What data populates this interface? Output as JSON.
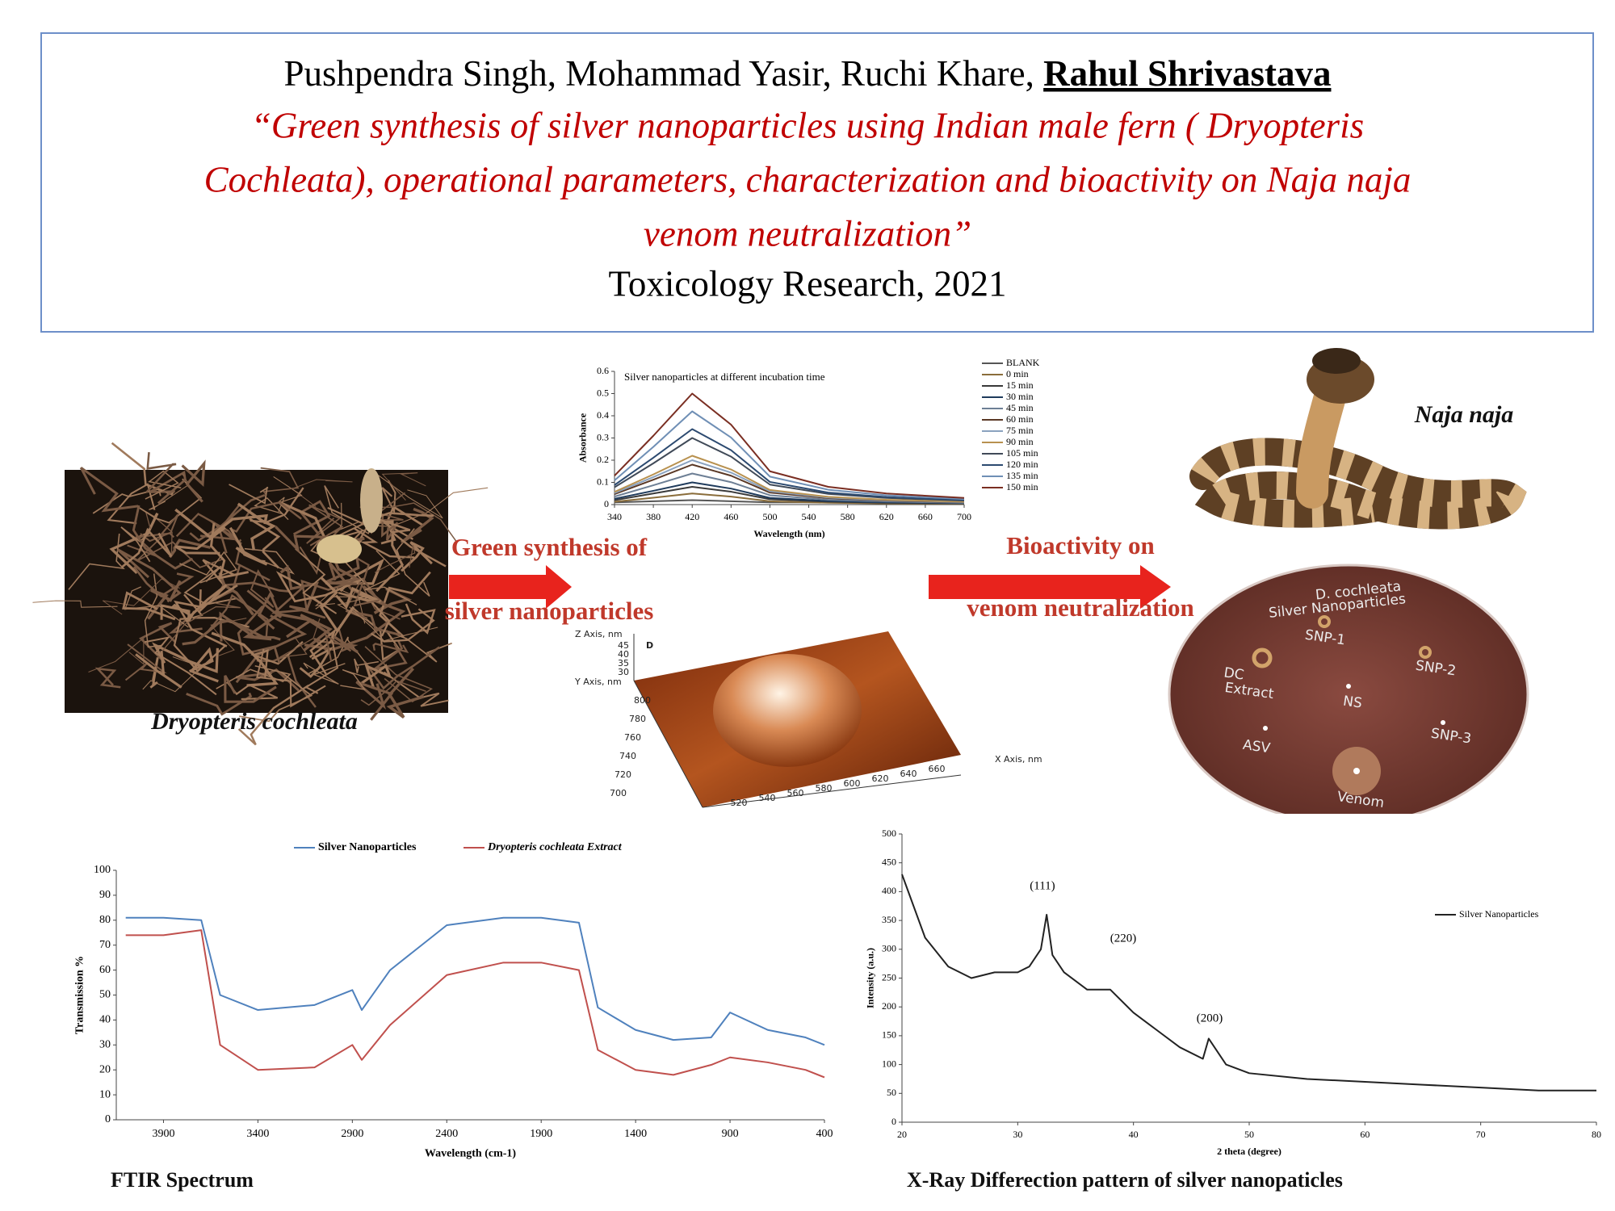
{
  "header": {
    "authors": "Pushpendra Singh, Mohammad Yasir, Ruchi Khare,",
    "presenting_author": "Rahul Shrivastava",
    "title_lines": [
      "“Green synthesis of silver nanoparticles using Indian male fern ( Dryopteris",
      "Cochleata), operational parameters, characterization and bioactivity on Naja naja",
      "venom neutralization”"
    ],
    "journal": "Toxicology Research, 2021"
  },
  "fern_caption": "Dryopteris cochleata",
  "arrow_1": [
    "Green synthesis of",
    "silver nanoparticles"
  ],
  "arrow_2": [
    "Bioactivity on",
    "venom neutralization"
  ],
  "snake_label": "Naja naja",
  "afm": {
    "panel": "D",
    "z_label": "Z Axis, nm",
    "z_ticks": [
      45,
      40,
      35,
      30
    ],
    "y_label": "Y Axis, nm",
    "y_ticks": [
      800,
      780,
      760,
      740,
      720,
      700
    ],
    "x_label": "X Axis, nm",
    "x_ticks": [
      520,
      540,
      560,
      580,
      600,
      620,
      640,
      660
    ]
  },
  "petri_labels": [
    "D. cochleata",
    "Silver Nanoparticles",
    "SNP-1",
    "SNP-2",
    "DC",
    "Extract",
    "NS",
    "SNP-3",
    "ASV",
    "Venom"
  ],
  "ftir_caption": "FTIR Spectrum",
  "xrd_caption": "X-Ray Differection pattern of silver nanopaticles",
  "chart_data": [
    {
      "type": "line",
      "title": "Silver nanoparticles at different incubation time",
      "x_label": "Wavelength (nm)",
      "y_label": "Absorbance",
      "x": [
        340,
        380,
        420,
        460,
        500,
        560,
        620,
        700
      ],
      "xlim": [
        340,
        700
      ],
      "xticks": [
        340,
        380,
        420,
        460,
        500,
        540,
        580,
        620,
        660,
        700
      ],
      "ylim": [
        0,
        0.6
      ],
      "yticks": [
        0,
        0.1,
        0.2,
        0.3,
        0.4,
        0.5,
        0.6
      ],
      "legend": "right",
      "series": [
        {
          "name": "BLANK",
          "color": "#555555",
          "values": [
            0.01,
            0.015,
            0.02,
            0.015,
            0.01,
            0.01,
            0.008,
            0.005
          ]
        },
        {
          "name": "0 min",
          "color": "#8a6d3b",
          "values": [
            0.013,
            0.031,
            0.05,
            0.036,
            0.015,
            0.008,
            0.005,
            0.003
          ]
        },
        {
          "name": "15 min",
          "color": "#3a3a3a",
          "values": [
            0.02,
            0.05,
            0.08,
            0.058,
            0.024,
            0.013,
            0.008,
            0.005
          ]
        },
        {
          "name": "30 min",
          "color": "#1f3b5c",
          "values": [
            0.026,
            0.062,
            0.1,
            0.072,
            0.03,
            0.016,
            0.01,
            0.006
          ]
        },
        {
          "name": "45 min",
          "color": "#6d7f95",
          "values": [
            0.036,
            0.087,
            0.14,
            0.101,
            0.042,
            0.022,
            0.014,
            0.008
          ]
        },
        {
          "name": "60 min",
          "color": "#5a3825",
          "values": [
            0.047,
            0.112,
            0.18,
            0.13,
            0.054,
            0.029,
            0.018,
            0.011
          ]
        },
        {
          "name": "75 min",
          "color": "#8aa2bf",
          "values": [
            0.052,
            0.124,
            0.2,
            0.144,
            0.06,
            0.032,
            0.02,
            0.012
          ]
        },
        {
          "name": "90 min",
          "color": "#b8914f",
          "values": [
            0.057,
            0.136,
            0.22,
            0.158,
            0.066,
            0.035,
            0.022,
            0.013
          ]
        },
        {
          "name": "105 min",
          "color": "#404a58",
          "values": [
            0.078,
            0.186,
            0.3,
            0.216,
            0.09,
            0.048,
            0.03,
            0.018
          ]
        },
        {
          "name": "120 min",
          "color": "#2c4a70",
          "values": [
            0.088,
            0.211,
            0.34,
            0.245,
            0.102,
            0.054,
            0.034,
            0.02
          ]
        },
        {
          "name": "135 min",
          "color": "#6f8fb5",
          "values": [
            0.109,
            0.26,
            0.42,
            0.302,
            0.126,
            0.067,
            0.042,
            0.025
          ]
        },
        {
          "name": "150 min",
          "color": "#7a2e22",
          "values": [
            0.13,
            0.31,
            0.5,
            0.36,
            0.15,
            0.08,
            0.05,
            0.03
          ]
        }
      ]
    },
    {
      "type": "line",
      "x_label": "Wavelength (cm-1)",
      "y_label": "Transmission %",
      "x": [
        4100,
        3900,
        3700,
        3600,
        3400,
        3100,
        2900,
        2850,
        2700,
        2400,
        2100,
        1900,
        1700,
        1600,
        1400,
        1200,
        1000,
        900,
        700,
        500,
        400
      ],
      "xlim": [
        4150,
        400
      ],
      "xticks": [
        3900,
        3400,
        2900,
        2400,
        1900,
        1400,
        900,
        400
      ],
      "ylim": [
        0,
        100
      ],
      "yticks": [
        0,
        10,
        20,
        30,
        40,
        50,
        60,
        70,
        80,
        90,
        100
      ],
      "legend": "top",
      "series": [
        {
          "name": "Silver Nanoparticles",
          "color": "#4f81bd",
          "values": [
            81,
            81,
            80,
            50,
            44,
            46,
            52,
            44,
            60,
            78,
            81,
            81,
            79,
            45,
            36,
            32,
            33,
            43,
            36,
            33,
            30
          ]
        },
        {
          "name": "Dryopteris cochleata Extract",
          "color": "#c0504d",
          "values": [
            74,
            74,
            76,
            30,
            20,
            21,
            30,
            24,
            38,
            58,
            63,
            63,
            60,
            28,
            20,
            18,
            22,
            25,
            23,
            20,
            17
          ]
        }
      ]
    },
    {
      "type": "line",
      "x_label": "2 theta (degree)",
      "y_label": "Intensity (a.u.)",
      "x": [
        20,
        22,
        24,
        26,
        28,
        30,
        31,
        32,
        32.5,
        33,
        34,
        36,
        38,
        40,
        42,
        44,
        46,
        46.5,
        48,
        50,
        55,
        60,
        65,
        70,
        75,
        80
      ],
      "xlim": [
        20,
        80
      ],
      "xticks": [
        20,
        30,
        40,
        50,
        60,
        70,
        80
      ],
      "ylim": [
        0,
        500
      ],
      "yticks": [
        0,
        50,
        100,
        150,
        200,
        250,
        300,
        350,
        400,
        450,
        500
      ],
      "legend": "upper right",
      "annotations": [
        "(111)",
        "(220)",
        "(200)"
      ],
      "series": [
        {
          "name": "Silver Nanoparticles",
          "color": "#222222",
          "values": [
            430,
            320,
            270,
            250,
            260,
            260,
            270,
            300,
            360,
            290,
            260,
            230,
            230,
            190,
            160,
            130,
            110,
            145,
            100,
            85,
            75,
            70,
            65,
            60,
            55,
            55
          ]
        }
      ]
    }
  ]
}
